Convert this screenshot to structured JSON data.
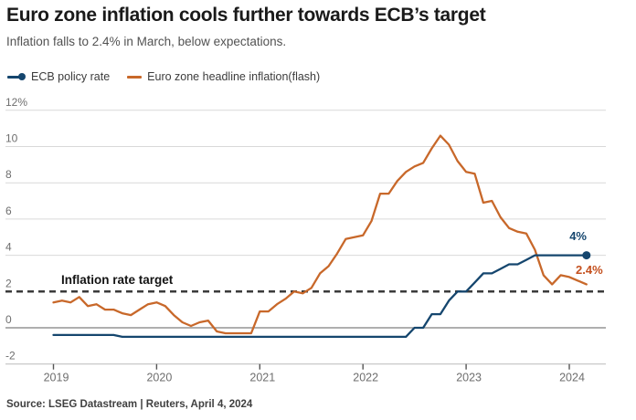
{
  "header": {
    "title": "Euro zone inflation cools further towards ECB’s target",
    "subtitle": "Inflation falls to 2.4% in March, below expectations."
  },
  "legend": [
    {
      "label": "ECB policy rate",
      "color": "#15466e",
      "marker": "line-dot"
    },
    {
      "label": "Euro zone headline inflation(flash)",
      "color": "#c8682a",
      "marker": "line"
    }
  ],
  "chart_data": {
    "type": "line",
    "title": "Euro zone inflation cools further towards ECB’s target",
    "subtitle": "Inflation falls to 2.4% in March, below expectations.",
    "x_unit": "month",
    "x_range": [
      "2019-01",
      "2024-03"
    ],
    "x_tick_labels": [
      "2019",
      "2020",
      "2021",
      "2022",
      "2023",
      "2024"
    ],
    "y_ticks": [
      12,
      10,
      8,
      6,
      4,
      2,
      0,
      -2
    ],
    "y_tick_labels": [
      "12%",
      "10",
      "8",
      "6",
      "4",
      "2",
      "0",
      "-2"
    ],
    "ylim": [
      -2.8,
      12.9
    ],
    "grid": true,
    "legend_position": "top-left",
    "target_line": {
      "value": 2,
      "label": "Inflation rate target",
      "style": "dashed",
      "color": "#3b3b3b"
    },
    "series": [
      {
        "name": "ECB policy rate",
        "color": "#15466e",
        "end_label": "4%",
        "end_marker": "dot",
        "values": [
          -0.4,
          -0.4,
          -0.4,
          -0.4,
          -0.4,
          -0.4,
          -0.4,
          -0.4,
          -0.5,
          -0.5,
          -0.5,
          -0.5,
          -0.5,
          -0.5,
          -0.5,
          -0.5,
          -0.5,
          -0.5,
          -0.5,
          -0.5,
          -0.5,
          -0.5,
          -0.5,
          -0.5,
          -0.5,
          -0.5,
          -0.5,
          -0.5,
          -0.5,
          -0.5,
          -0.5,
          -0.5,
          -0.5,
          -0.5,
          -0.5,
          -0.5,
          -0.5,
          -0.5,
          -0.5,
          -0.5,
          -0.5,
          -0.5,
          0,
          0,
          0.75,
          0.75,
          1.5,
          2.0,
          2.0,
          2.5,
          3.0,
          3.0,
          3.25,
          3.5,
          3.5,
          3.75,
          4.0,
          4.0,
          4.0,
          4.0,
          4.0,
          4.0,
          4.0
        ]
      },
      {
        "name": "Euro zone headline inflation(flash)",
        "color": "#c8682a",
        "end_label": "2.4%",
        "end_marker": "none",
        "values": [
          1.4,
          1.5,
          1.4,
          1.7,
          1.2,
          1.3,
          1.0,
          1.0,
          0.8,
          0.7,
          1.0,
          1.3,
          1.4,
          1.2,
          0.7,
          0.3,
          0.1,
          0.3,
          0.4,
          -0.2,
          -0.3,
          -0.3,
          -0.3,
          -0.3,
          0.9,
          0.9,
          1.3,
          1.6,
          2.0,
          1.9,
          2.2,
          3.0,
          3.4,
          4.1,
          4.9,
          5.0,
          5.1,
          5.9,
          7.4,
          7.4,
          8.1,
          8.6,
          8.9,
          9.1,
          9.9,
          10.6,
          10.1,
          9.2,
          8.6,
          8.5,
          6.9,
          7.0,
          6.1,
          5.5,
          5.3,
          5.2,
          4.3,
          2.9,
          2.4,
          2.9,
          2.8,
          2.6,
          2.4
        ]
      }
    ]
  },
  "footer": {
    "source": "Source: LSEG Datastream | Reuters, April 4, 2024"
  }
}
